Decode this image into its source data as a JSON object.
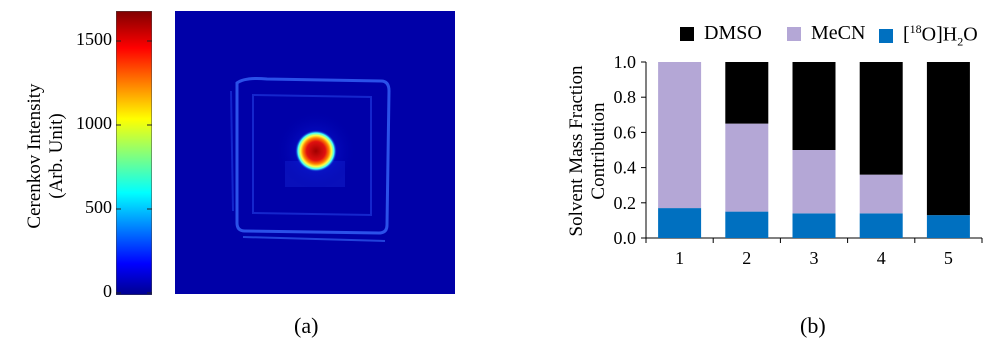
{
  "panel_a": {
    "label": "(a)",
    "colorbar": {
      "ylabel_line1": "Cerenkov Intensity",
      "ylabel_line2": "(Arb. Unit)",
      "ticks": [
        "1500",
        "1000",
        "500",
        "0"
      ],
      "tick_values": [
        1500,
        1000,
        500,
        0
      ],
      "range": [
        0,
        1650
      ],
      "colormap": "jet"
    },
    "image": {
      "description_colors": {
        "background": "#0000b0",
        "hotspot": "#c01010"
      }
    }
  },
  "panel_b": {
    "label": "(b)",
    "chart_data": {
      "type": "bar",
      "stacked": true,
      "categories": [
        "1",
        "2",
        "3",
        "4",
        "5"
      ],
      "series": [
        {
          "name": "[18O]H2O",
          "values": [
            0.17,
            0.15,
            0.14,
            0.14,
            0.13
          ],
          "color": "#0070c0"
        },
        {
          "name": "MeCN",
          "values": [
            0.83,
            0.5,
            0.36,
            0.22,
            0.0
          ],
          "color": "#b4a7d6"
        },
        {
          "name": "DMSO",
          "values": [
            0.0,
            0.35,
            0.5,
            0.64,
            0.87
          ],
          "color": "#000000"
        }
      ],
      "ylabel_line1": "Solvent Mass Fraction",
      "ylabel_line2": "Contribution",
      "xlabel": "",
      "ylim": [
        0,
        1.0
      ],
      "yticks": [
        "0.0",
        "0.2",
        "0.4",
        "0.6",
        "0.8",
        "1.0"
      ],
      "legend_position": "top",
      "legend": {
        "dmso": "DMSO",
        "mecn": "MeCN",
        "water_prefix": "[",
        "water_sup": "18",
        "water_mid": "O]H",
        "water_sub": "2",
        "water_suffix": "O"
      }
    }
  }
}
